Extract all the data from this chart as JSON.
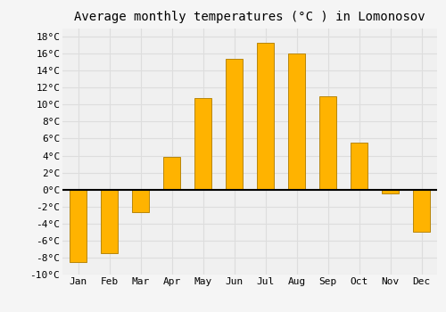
{
  "title": "Average monthly temperatures (°C ) in Lomonosov",
  "months": [
    "Jan",
    "Feb",
    "Mar",
    "Apr",
    "May",
    "Jun",
    "Jul",
    "Aug",
    "Sep",
    "Oct",
    "Nov",
    "Dec"
  ],
  "values": [
    -8.5,
    -7.5,
    -2.7,
    3.8,
    10.8,
    15.4,
    17.3,
    16.0,
    11.0,
    5.5,
    -0.5,
    -5.0
  ],
  "bar_color_top": "#FFB300",
  "bar_color_bottom": "#FF8C00",
  "bar_edge_color": "#B8860B",
  "ylim": [
    -10,
    19
  ],
  "yticks": [
    -10,
    -8,
    -6,
    -4,
    -2,
    0,
    2,
    4,
    6,
    8,
    10,
    12,
    14,
    16,
    18
  ],
  "ytick_labels": [
    "-10°C",
    "-8°C",
    "-6°C",
    "-4°C",
    "-2°C",
    "0°C",
    "2°C",
    "4°C",
    "6°C",
    "8°C",
    "10°C",
    "12°C",
    "14°C",
    "16°C",
    "18°C"
  ],
  "background_color": "#f5f5f5",
  "plot_bg_color": "#f0f0f0",
  "grid_color": "#dddddd",
  "title_fontsize": 10,
  "tick_fontsize": 8,
  "bar_width": 0.55,
  "figsize": [
    5.0,
    3.5
  ],
  "dpi": 100
}
